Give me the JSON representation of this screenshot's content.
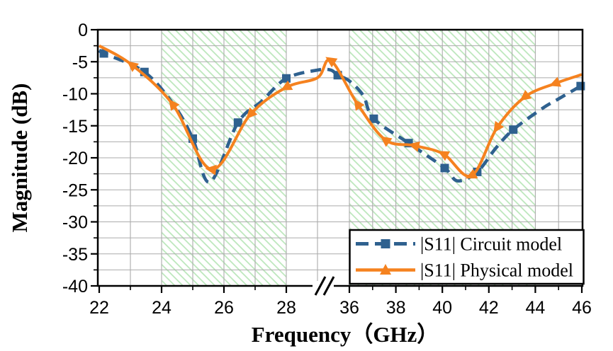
{
  "figure": {
    "background": "#ffffff",
    "frame_color": "#000000",
    "grid_color": "#ababab",
    "hatch_color": "#b9e6b9"
  },
  "chart_data": {
    "type": "line",
    "title": "",
    "xlabel": "Frequency（GHz）",
    "ylabel": "Magnitude (dB)",
    "x_axis": {
      "unit": "GHz",
      "break_symbol": "//",
      "segments": [
        {
          "range": [
            22,
            29.1
          ],
          "major_ticks": [
            22,
            24,
            26,
            28
          ],
          "minor_ticks": [
            23,
            25,
            27
          ],
          "gridlines": [
            23,
            24,
            25,
            26,
            27,
            28,
            29
          ]
        },
        {
          "range": [
            35.05,
            46
          ],
          "major_ticks": [
            36,
            38,
            40,
            42,
            44,
            46
          ],
          "minor_ticks": [
            37,
            39,
            41,
            43,
            45
          ],
          "gridlines": [
            36,
            37,
            38,
            39,
            40,
            41,
            42,
            43,
            44,
            45
          ]
        }
      ]
    },
    "y_axis": {
      "range": [
        -40,
        0
      ],
      "major_ticks": [
        0,
        -5,
        -10,
        -15,
        -20,
        -25,
        -30,
        -35,
        -40
      ],
      "minor_ticks": [
        -2.5,
        -7.5,
        -12.5,
        -17.5,
        -22.5,
        -27.5,
        -32.5,
        -37.5
      ],
      "gridline_step_db": 2.5
    },
    "highlight_bands": [
      {
        "from_ghz": 24,
        "to_ghz": 28
      },
      {
        "from_ghz": 36,
        "to_ghz": 44
      }
    ],
    "legend": {
      "position": "bottom-right"
    },
    "series": [
      {
        "name": "|S11| Circuit model",
        "color": "#2f618f",
        "line_style": "dashed",
        "marker": "square",
        "points": [
          [
            22.0,
            -3.2
          ],
          [
            22.15,
            -3.7
          ],
          [
            23.45,
            -6.6
          ],
          [
            24.4,
            -11.8
          ],
          [
            25.0,
            -17.0
          ],
          [
            25.55,
            -23.8
          ],
          [
            26.45,
            -14.5
          ],
          [
            27.2,
            -11.2
          ],
          [
            28.0,
            -7.6
          ],
          [
            29.0,
            -6.3
          ],
          [
            35.2,
            -6.3
          ],
          [
            35.5,
            -7.1
          ],
          [
            36.0,
            -8.0
          ],
          [
            36.6,
            -10.3
          ],
          [
            37.05,
            -13.9
          ],
          [
            38.55,
            -17.7
          ],
          [
            40.1,
            -21.6
          ],
          [
            40.65,
            -23.6
          ],
          [
            41.5,
            -22.2
          ],
          [
            42.3,
            -18.5
          ],
          [
            43.05,
            -15.6
          ],
          [
            44.3,
            -12.3
          ],
          [
            44.9,
            -11.0
          ],
          [
            45.95,
            -8.8
          ]
        ],
        "marker_points": [
          [
            22.15,
            -3.7
          ],
          [
            23.45,
            -6.6
          ],
          [
            25.0,
            -17.0
          ],
          [
            26.45,
            -14.5
          ],
          [
            28.0,
            -7.6
          ],
          [
            35.5,
            -7.1
          ],
          [
            37.05,
            -13.9
          ],
          [
            38.55,
            -17.7
          ],
          [
            40.1,
            -21.6
          ],
          [
            41.5,
            -22.2
          ],
          [
            43.05,
            -15.6
          ],
          [
            45.95,
            -8.8
          ]
        ]
      },
      {
        "name": "|S11| Physical model",
        "color": "#f5821f",
        "line_style": "solid",
        "marker": "triangle",
        "points": [
          [
            22.0,
            -2.5
          ],
          [
            23.05,
            -5.5
          ],
          [
            24.35,
            -11.6
          ],
          [
            25.6,
            -21.8
          ],
          [
            26.85,
            -13.2
          ],
          [
            28.0,
            -9.0
          ],
          [
            29.0,
            -7.5
          ],
          [
            35.2,
            -4.8
          ],
          [
            36.35,
            -11.6
          ],
          [
            37.55,
            -17.2
          ],
          [
            38.8,
            -18.1
          ],
          [
            40.05,
            -19.4
          ],
          [
            41.25,
            -22.8
          ],
          [
            42.35,
            -15.3
          ],
          [
            43.55,
            -10.5
          ],
          [
            44.85,
            -8.4
          ],
          [
            46.0,
            -7.0
          ]
        ],
        "marker_points": [
          [
            23.05,
            -5.5
          ],
          [
            24.35,
            -11.6
          ],
          [
            25.6,
            -21.8
          ],
          [
            26.85,
            -13.2
          ],
          [
            28.0,
            -9.0
          ],
          [
            35.2,
            -4.8
          ],
          [
            36.35,
            -11.6
          ],
          [
            37.55,
            -17.2
          ],
          [
            38.8,
            -18.1
          ],
          [
            40.05,
            -19.4
          ],
          [
            41.25,
            -22.8
          ],
          [
            42.35,
            -15.3
          ],
          [
            43.55,
            -10.5
          ],
          [
            44.85,
            -8.4
          ]
        ]
      }
    ]
  }
}
